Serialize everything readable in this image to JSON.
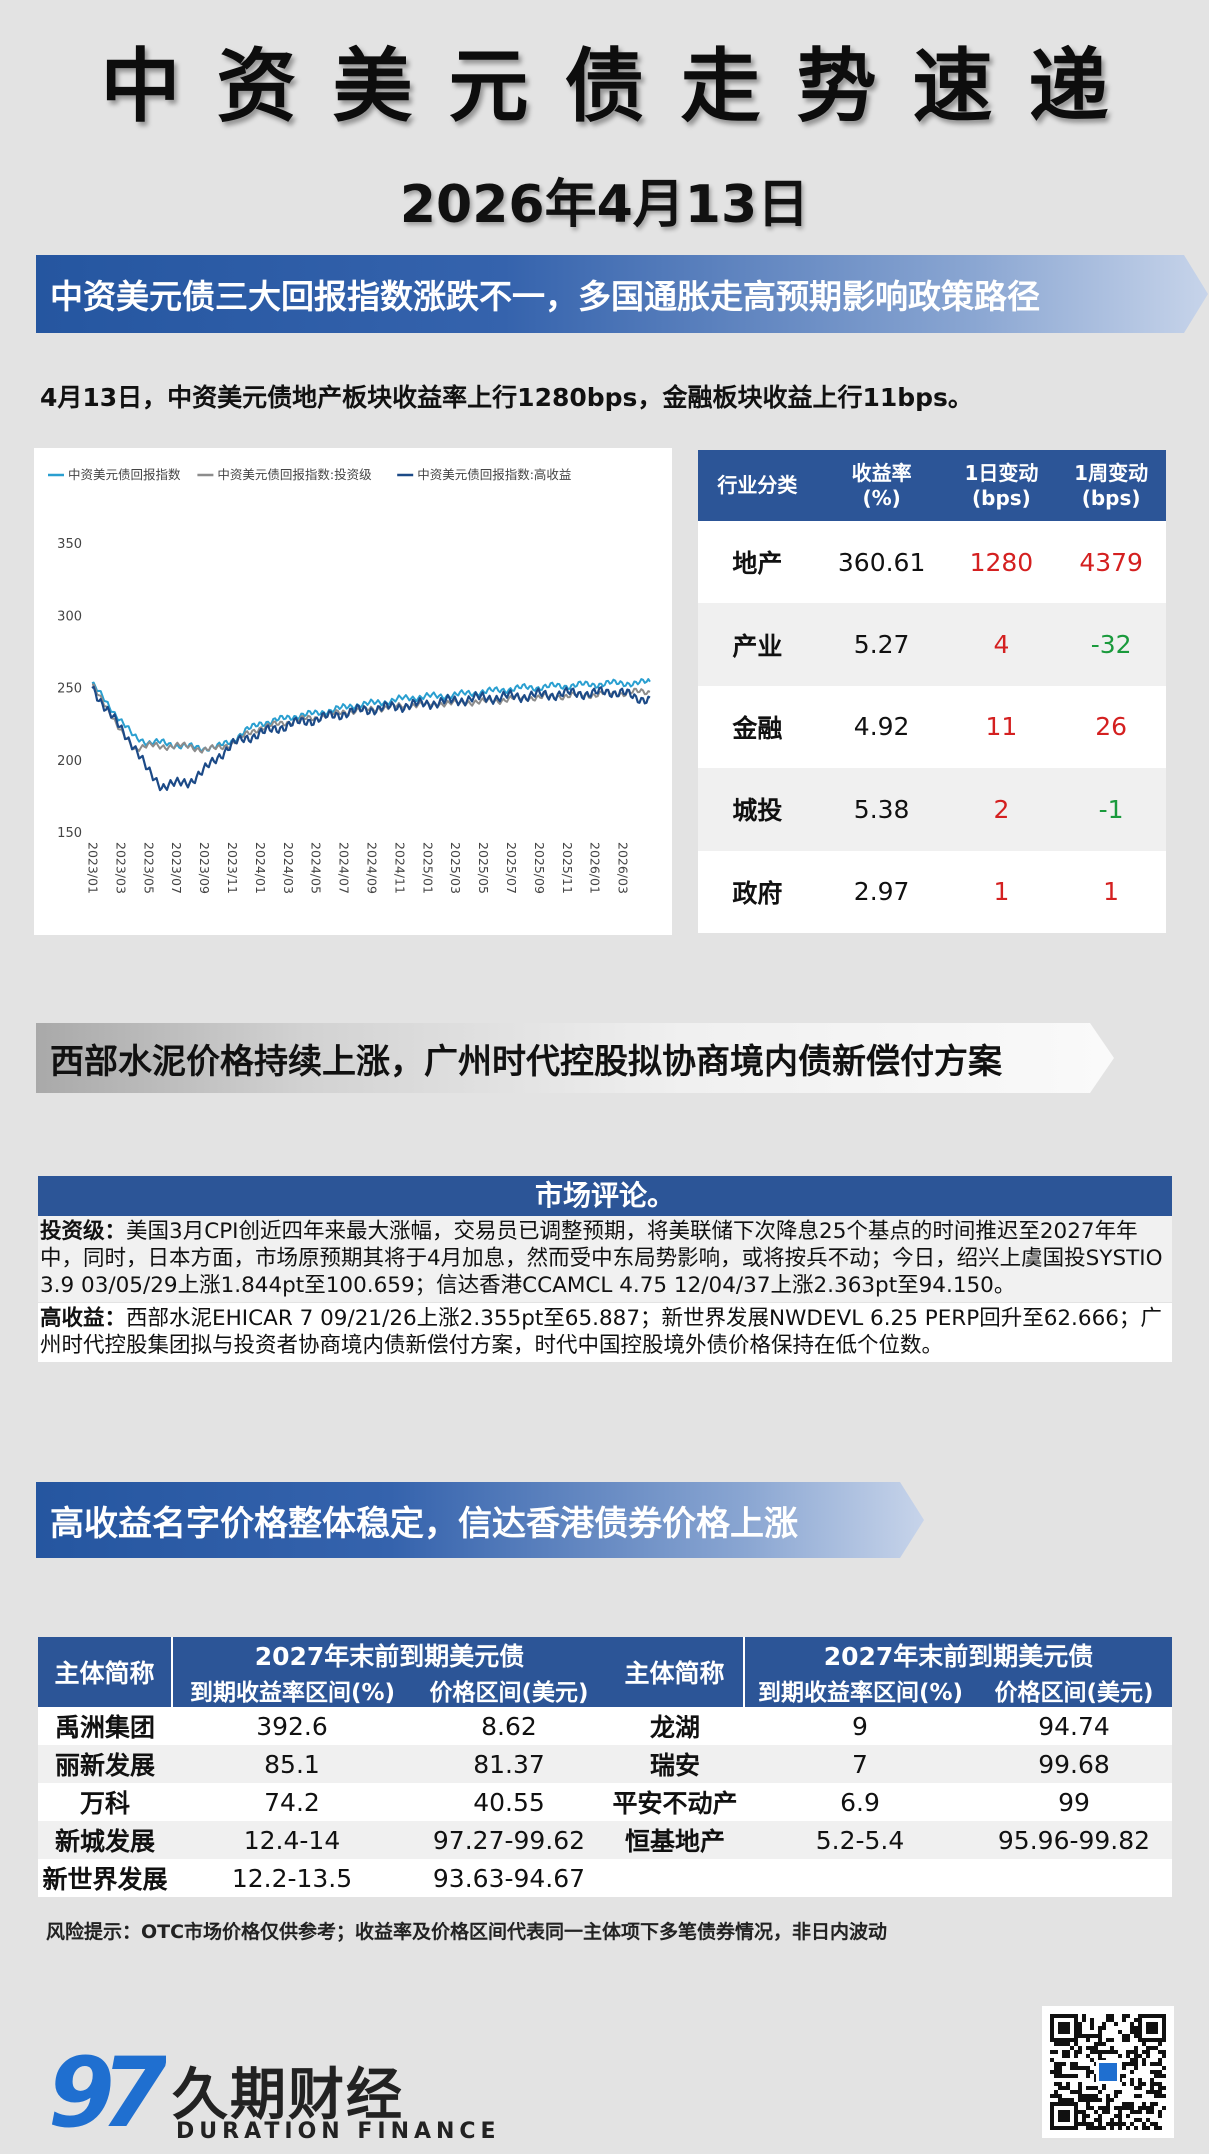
{
  "header": {
    "title": "中资美元债走势速递",
    "date": "2026年4月13日"
  },
  "section1": {
    "banner": "中资美元债三大回报指数涨跌不一，多国通胀走高预期影响政策路径",
    "summary": "4月13日，中资美元债地产板块收益率上行1280bps，金融板块收益上行11bps。"
  },
  "chart_data": {
    "type": "line",
    "title": "",
    "xlabel": "",
    "ylabel": "",
    "ylim": [
      150,
      350
    ],
    "yticks": [
      150,
      200,
      250,
      300,
      350
    ],
    "x_tick_labels": [
      "2023/01",
      "2023/03",
      "2023/05",
      "2023/07",
      "2023/09",
      "2023/11",
      "2024/01",
      "2024/03",
      "2024/05",
      "2024/07",
      "2024/09",
      "2024/11",
      "2025/01",
      "2025/03",
      "2025/05",
      "2025/07",
      "2025/09",
      "2025/11",
      "2026/01",
      "2026/03"
    ],
    "x_months": [
      0,
      1,
      2,
      3,
      4,
      5,
      6,
      7,
      8,
      9,
      10,
      11,
      12,
      13,
      14,
      15,
      16,
      17,
      18,
      19,
      20,
      21,
      22,
      23,
      24,
      25,
      26,
      27,
      28,
      29,
      30,
      31,
      32,
      33,
      34,
      35,
      36,
      37,
      38,
      39,
      40
    ],
    "legend_position": "top-left",
    "grid": false,
    "series": [
      {
        "name": "中资美元债回报指数",
        "color": "#2a9fd0",
        "values": [
          253,
          240,
          228,
          216,
          212,
          212,
          210,
          209,
          208,
          209,
          213,
          220,
          225,
          227,
          229,
          231,
          232,
          234,
          236,
          238,
          239,
          240,
          242,
          243,
          244,
          244,
          245,
          246,
          247,
          248,
          249,
          250,
          250,
          251,
          251,
          252,
          252,
          253,
          253,
          253,
          254
        ]
      },
      {
        "name": "中资美元债回报指数:投资级",
        "color": "#8c8c8c",
        "values": [
          251,
          238,
          220,
          208,
          210,
          209,
          210,
          209,
          207,
          208,
          211,
          217,
          222,
          224,
          226,
          228,
          229,
          231,
          233,
          234,
          235,
          236,
          237,
          238,
          238,
          239,
          239,
          240,
          240,
          241,
          242,
          243,
          243,
          244,
          244,
          245,
          245,
          246,
          246,
          247,
          247
        ]
      },
      {
        "name": "中资美元债回报指数:高收益",
        "color": "#1c4a87",
        "values": [
          250,
          236,
          222,
          210,
          192,
          182,
          183,
          185,
          192,
          202,
          210,
          215,
          218,
          221,
          224,
          226,
          228,
          230,
          232,
          234,
          235,
          236,
          237,
          238,
          239,
          240,
          241,
          242,
          243,
          243,
          244,
          244,
          245,
          245,
          246,
          246,
          246,
          247,
          247,
          242,
          243
        ]
      }
    ]
  },
  "sector_table": {
    "headers": [
      "行业分类",
      "收益率\n(%)",
      "1日变动\n(bps)",
      "1周变动\n(bps)"
    ],
    "rows": [
      {
        "name": "地产",
        "yield": "360.61",
        "d1": "1280",
        "w1": "4379",
        "d1_dir": "up",
        "w1_dir": "up"
      },
      {
        "name": "产业",
        "yield": "5.27",
        "d1": "4",
        "w1": "-32",
        "d1_dir": "up",
        "w1_dir": "down"
      },
      {
        "name": "金融",
        "yield": "4.92",
        "d1": "11",
        "w1": "26",
        "d1_dir": "up",
        "w1_dir": "up"
      },
      {
        "name": "城投",
        "yield": "5.38",
        "d1": "2",
        "w1": "-1",
        "d1_dir": "up",
        "w1_dir": "down"
      },
      {
        "name": "政府",
        "yield": "2.97",
        "d1": "1",
        "w1": "1",
        "d1_dir": "up",
        "w1_dir": "up"
      }
    ]
  },
  "section2": {
    "banner": "西部水泥价格持续上涨，广州时代控股拟协商境内债新偿付方案"
  },
  "commentary": {
    "title": "市场评论。",
    "ig_label": "投资级：",
    "ig_text": "美国3月CPI创近四年来最大涨幅，交易员已调整预期，将美联储下次降息25个基点的时间推迟至2027年年中，同时，日本方面，市场原预期其将于4月加息，然而受中东局势影响，或将按兵不动；今日，绍兴上虞国投SYSTIO 3.9 03/05/29上涨1.844pt至100.659；信达香港CCAMCL 4.75 12/04/37上涨2.363pt至94.150。",
    "hy_label": "高收益：",
    "hy_text": "西部水泥EHICAR 7 09/21/26上涨2.355pt至65.887；新世界发展NWDEVL 6.25 PERP回升至62.666；广州时代控股集团拟与投资者协商境内债新偿付方案，时代中国控股境外债价格保持在低个位数。"
  },
  "section3": {
    "banner": "高收益名字价格整体稳定，信达香港债券价格上涨"
  },
  "bond_table": {
    "entity_header": "主体简称",
    "group_header": "2027年末前到期美元债",
    "yield_header": "到期收益率区间(%)",
    "price_header": "价格区间(美元)",
    "left_rows": [
      {
        "name": "禹洲集团",
        "yield": "392.6",
        "price": "8.62"
      },
      {
        "name": "丽新发展",
        "yield": "85.1",
        "price": "81.37"
      },
      {
        "name": "万科",
        "yield": "74.2",
        "price": "40.55"
      },
      {
        "name": "新城发展",
        "yield": "12.4-14",
        "price": "97.27-99.62"
      },
      {
        "name": "新世界发展",
        "yield": "12.2-13.5",
        "price": "93.63-94.67"
      }
    ],
    "right_rows": [
      {
        "name": "龙湖",
        "yield": "9",
        "price": "94.74"
      },
      {
        "name": "瑞安",
        "yield": "7",
        "price": "99.68"
      },
      {
        "name": "平安不动产",
        "yield": "6.9",
        "price": "99"
      },
      {
        "name": "恒基地产",
        "yield": "5.2-5.4",
        "price": "95.96-99.82"
      },
      {
        "name": "",
        "yield": "",
        "price": ""
      }
    ]
  },
  "risk_note": "风险提示：OTC市场价格仅供参考；收益率及价格区间代表同一主体项下多笔债券情况，非日内波动",
  "footer": {
    "logo_text": "97",
    "brand_cn": "久期财经",
    "brand_en": "DURATION FINANCE",
    "qr_icon": "qr-code-icon"
  }
}
